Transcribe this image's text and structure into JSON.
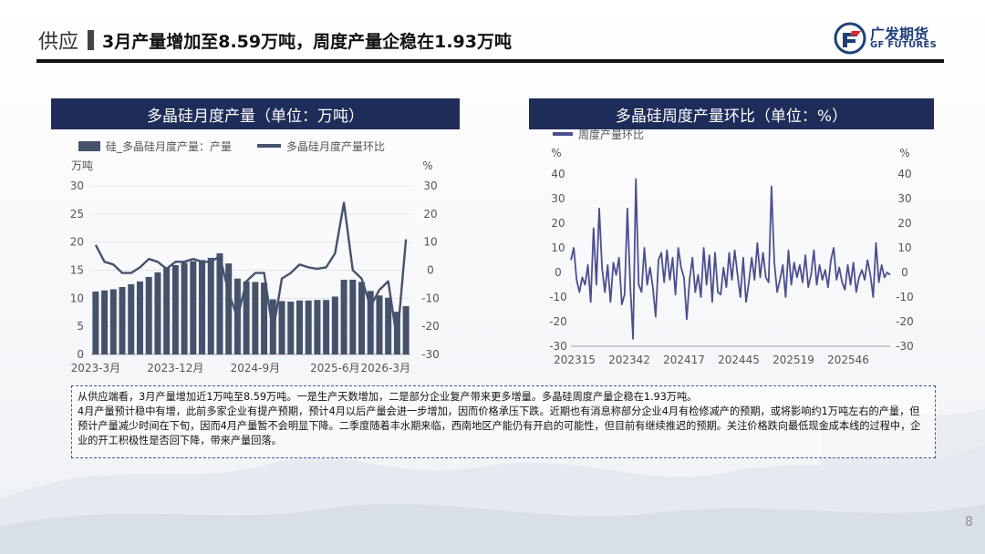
{
  "header": {
    "section": "供应",
    "title": "3月产量增加至8.59万吨，周度产量企稳在1.93万吨",
    "logo_cn": "广发期货",
    "logo_en": "GF FUTURES"
  },
  "colors": {
    "navy": "#1f2c5a",
    "bar": "#46526c",
    "line": "#46526c",
    "weekly": "#4b4f8f"
  },
  "panels": [
    {
      "title": "多晶硅月度产量（单位：万吨）"
    },
    {
      "title": "多晶硅周度产量环比（单位：%）"
    }
  ],
  "chart_data": [
    {
      "type": "bar",
      "title": "多晶硅月度产量（单位：万吨）",
      "legend": [
        "硅_多晶硅月度产量：产量",
        "多晶硅月度产量环比"
      ],
      "ylabel_left": "万吨",
      "ylabel_right": "%",
      "ylim_left": [
        0,
        30
      ],
      "ylim_right": [
        -30,
        30
      ],
      "yticks_left": [
        "0",
        "5",
        "10",
        "15",
        "20",
        "25",
        "30"
      ],
      "yticks_right": [
        "-30",
        "-20",
        "-10",
        "0",
        "10",
        "20",
        "30"
      ],
      "xtick_labels": [
        "2023-3月",
        "2023-12月",
        "2024-9月",
        "2025-6月",
        "2026-3月"
      ],
      "series": [
        {
          "name": "硅_多晶硅月度产量：产量",
          "type": "bar",
          "values": [
            11.2,
            11.4,
            11.6,
            12.0,
            12.5,
            13.0,
            13.8,
            14.6,
            15.4,
            15.9,
            16.3,
            16.6,
            16.8,
            17.2,
            18.0,
            16.2,
            13.5,
            13.0,
            12.9,
            12.8,
            9.8,
            9.5,
            9.4,
            9.6,
            9.6,
            9.7,
            9.7,
            10.3,
            13.3,
            13.3,
            12.9,
            11.3,
            10.5,
            10.1,
            7.6,
            8.59
          ]
        },
        {
          "name": "多晶硅月度产量环比",
          "type": "line",
          "values": [
            9,
            3,
            2,
            -1,
            -1,
            1,
            4,
            3,
            0.5,
            3,
            3,
            4,
            3,
            3,
            5,
            -8,
            -17,
            -4,
            -1,
            -1,
            -22,
            -3,
            -1,
            2,
            1,
            0.5,
            1,
            6,
            24,
            0,
            -3,
            -13,
            -7,
            -4,
            -25,
            11
          ]
        }
      ]
    },
    {
      "type": "line",
      "title": "多晶硅周度产量环比（单位：%）",
      "legend": [
        "周度产量环比"
      ],
      "ylabel_left": "%",
      "ylabel_right": "%",
      "ylim": [
        -30,
        40
      ],
      "yticks": [
        "-30",
        "-20",
        "-10",
        "0",
        "10",
        "20",
        "30",
        "40"
      ],
      "xtick_labels": [
        "202315",
        "202342",
        "202417",
        "202445",
        "202519",
        "202546"
      ],
      "series": [
        {
          "name": "周度产量环比",
          "values": [
            5,
            10,
            -3,
            -8,
            -2,
            -5,
            3,
            -12,
            18,
            -5,
            26,
            2,
            -8,
            3,
            -12,
            4,
            -1,
            6,
            -13,
            -9,
            26,
            -5,
            -27,
            38,
            -5,
            -8,
            10,
            -5,
            2,
            -6,
            -18,
            5,
            8,
            -4,
            9,
            -3,
            6,
            -9,
            10,
            2,
            -2,
            -19,
            -3,
            6,
            -8,
            -1,
            -10,
            10,
            -5,
            7,
            -12,
            8,
            -8,
            -9,
            2,
            -6,
            8,
            -3,
            9,
            -1,
            -10,
            6,
            -12,
            -4,
            6,
            -3,
            12,
            -2,
            8,
            -2,
            -4,
            35,
            4,
            -8,
            -3,
            3,
            -10,
            9,
            -5,
            4,
            -2,
            3,
            -4,
            7,
            -6,
            -1,
            9,
            -5,
            3,
            -3,
            1,
            -6,
            5,
            10,
            -3,
            2,
            -4,
            -7,
            3,
            -5,
            4,
            -8,
            -2,
            1,
            -3,
            5,
            -1,
            -10,
            12,
            -4,
            3,
            -2,
            0,
            -1
          ]
        }
      ]
    }
  ],
  "note": {
    "lines": [
      "从供应端看，3月产量增加近1万吨至8.59万吨。一是生产天数增加，二是部分企业复产带来更多增量。多晶硅周度产量企稳在1.93万吨。",
      "4月产量预计稳中有增，此前多家企业有提产预期，预计4月以后产量会进一步增加，因而价格承压下跌。近期也有消息称部分企业4月有检修减产的预期，或将影响约1万吨左右的产量，但预计产量减少时间在下旬，因而4月产量暂不会明显下降。二季度随着丰水期来临，西南地区产能仍有开启的可能性，但目前有继续推迟的预期。关注价格跌向最低现金成本线的过程中，企业的开工积极性是否回下降，带来产量回落。"
    ]
  },
  "page_number": "8"
}
